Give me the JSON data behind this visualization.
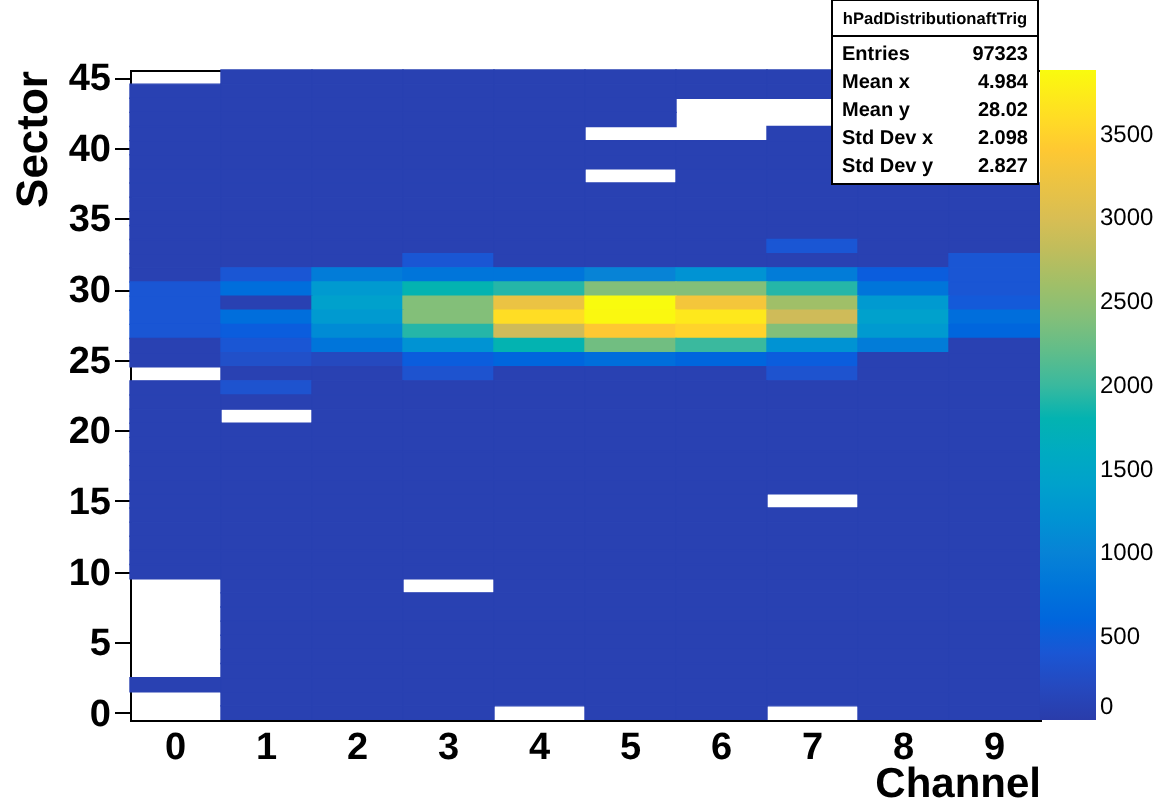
{
  "chart_data": {
    "type": "heatmap",
    "xlabel": "Channel",
    "ylabel": "Sector",
    "categories": [
      "0",
      "1",
      "2",
      "3",
      "4",
      "5",
      "6",
      "7",
      "8",
      "9"
    ],
    "ylim": [
      -0.5,
      45.5
    ],
    "yticks": [
      0,
      5,
      10,
      15,
      20,
      25,
      30,
      35,
      40,
      45
    ],
    "clim": [
      0,
      3880
    ],
    "cticks": [
      0,
      500,
      1000,
      1500,
      2000,
      2500,
      3000,
      3500
    ],
    "annotations": [
      "hPadDistributionaftTrig",
      "Entries",
      "97323",
      "Mean x",
      "4.984",
      "Mean y",
      "28.02",
      "Std Dev x",
      "2.098",
      "Std Dev y",
      "2.827"
    ],
    "cells": [
      [
        null,
        80,
        80,
        80,
        80,
        80,
        80,
        80,
        null,
        null
      ],
      [
        80,
        80,
        80,
        80,
        80,
        80,
        80,
        80,
        null,
        null
      ],
      [
        80,
        80,
        80,
        80,
        80,
        80,
        null,
        null,
        null,
        null
      ],
      [
        80,
        80,
        80,
        80,
        80,
        80,
        null,
        null,
        null,
        null
      ],
      [
        80,
        80,
        80,
        80,
        80,
        null,
        null,
        80,
        null,
        null
      ],
      [
        80,
        80,
        80,
        80,
        80,
        80,
        80,
        80,
        null,
        null
      ],
      [
        80,
        80,
        80,
        80,
        80,
        80,
        80,
        80,
        null,
        null
      ],
      [
        80,
        80,
        80,
        80,
        80,
        null,
        80,
        80,
        null,
        null
      ],
      [
        80,
        80,
        80,
        80,
        80,
        80,
        80,
        80,
        80,
        80
      ],
      [
        80,
        80,
        80,
        80,
        80,
        80,
        80,
        80,
        80,
        80
      ],
      [
        80,
        80,
        80,
        80,
        80,
        80,
        80,
        80,
        80,
        80
      ],
      [
        80,
        80,
        80,
        80,
        80,
        80,
        80,
        80,
        80,
        80
      ],
      [
        80,
        80,
        80,
        80,
        80,
        80,
        80,
        400,
        80,
        80
      ],
      [
        80,
        80,
        80,
        400,
        80,
        80,
        80,
        80,
        80,
        400
      ],
      [
        80,
        400,
        900,
        800,
        800,
        1000,
        1200,
        900,
        500,
        400
      ],
      [
        400,
        700,
        1300,
        1800,
        1900,
        2400,
        2400,
        1900,
        800,
        400
      ],
      [
        400,
        80,
        1400,
        2400,
        3200,
        3880,
        3300,
        2600,
        1300,
        450
      ],
      [
        400,
        700,
        1300,
        2400,
        3600,
        3850,
        3700,
        2900,
        1400,
        700
      ],
      [
        400,
        500,
        1100,
        1900,
        2900,
        3400,
        3500,
        2400,
        1300,
        600
      ],
      [
        80,
        400,
        800,
        1200,
        1800,
        2300,
        2000,
        1200,
        900,
        80
      ],
      [
        80,
        300,
        200,
        500,
        600,
        700,
        600,
        500,
        80,
        80
      ],
      [
        null,
        80,
        80,
        350,
        80,
        80,
        80,
        350,
        80,
        80
      ],
      [
        80,
        350,
        80,
        80,
        80,
        80,
        80,
        80,
        80,
        80
      ],
      [
        80,
        80,
        80,
        80,
        80,
        80,
        80,
        80,
        80,
        80
      ],
      [
        80,
        null,
        80,
        80,
        80,
        80,
        80,
        80,
        80,
        80
      ],
      [
        80,
        80,
        80,
        80,
        80,
        80,
        80,
        80,
        80,
        80
      ],
      [
        80,
        80,
        80,
        80,
        80,
        80,
        80,
        80,
        80,
        80
      ],
      [
        80,
        80,
        80,
        80,
        80,
        80,
        80,
        80,
        80,
        80
      ],
      [
        80,
        80,
        80,
        80,
        80,
        80,
        80,
        80,
        80,
        80
      ],
      [
        80,
        80,
        80,
        80,
        80,
        80,
        80,
        80,
        80,
        80
      ],
      [
        80,
        80,
        80,
        80,
        80,
        80,
        80,
        null,
        80,
        80
      ],
      [
        80,
        80,
        80,
        80,
        80,
        80,
        80,
        80,
        80,
        80
      ],
      [
        80,
        80,
        80,
        80,
        80,
        80,
        80,
        80,
        80,
        80
      ],
      [
        80,
        80,
        80,
        80,
        80,
        80,
        80,
        80,
        80,
        80
      ],
      [
        80,
        80,
        80,
        80,
        80,
        80,
        80,
        80,
        80,
        80
      ],
      [
        80,
        80,
        80,
        80,
        80,
        80,
        80,
        80,
        80,
        80
      ],
      [
        null,
        80,
        80,
        null,
        80,
        80,
        80,
        80,
        80,
        80
      ],
      [
        null,
        80,
        80,
        80,
        80,
        80,
        80,
        80,
        80,
        80
      ],
      [
        null,
        80,
        80,
        80,
        80,
        80,
        80,
        80,
        80,
        80
      ],
      [
        null,
        80,
        80,
        80,
        80,
        80,
        80,
        80,
        80,
        80
      ],
      [
        null,
        80,
        80,
        80,
        80,
        80,
        80,
        80,
        80,
        80
      ],
      [
        null,
        80,
        80,
        80,
        80,
        80,
        80,
        80,
        80,
        80
      ],
      [
        null,
        80,
        80,
        80,
        80,
        80,
        80,
        80,
        80,
        80
      ],
      [
        80,
        80,
        80,
        80,
        80,
        80,
        80,
        80,
        80,
        80
      ],
      [
        null,
        80,
        80,
        80,
        80,
        80,
        80,
        80,
        80,
        80
      ],
      [
        null,
        80,
        80,
        80,
        null,
        80,
        80,
        null,
        80,
        80
      ]
    ]
  }
}
